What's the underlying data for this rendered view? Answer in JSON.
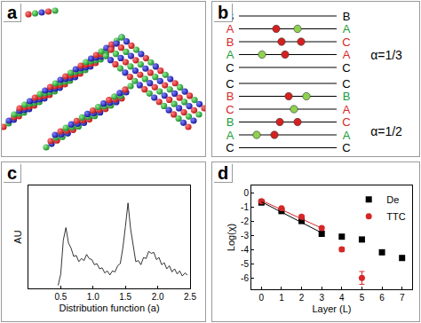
{
  "panel_labels": [
    "a",
    "b",
    "c",
    "d"
  ],
  "diagram": {
    "stacks": [
      {
        "label": "α=1/3",
        "left": [
          {
            "text": "B",
            "color": "#000000"
          },
          {
            "text": "A",
            "color": "#d62728"
          },
          {
            "text": "B",
            "color": "#d62728"
          },
          {
            "text": "A",
            "color": "#1a9c3a"
          },
          {
            "text": "C",
            "color": "#000000"
          }
        ],
        "right": [
          {
            "text": "B",
            "color": "#000000"
          },
          {
            "text": "A",
            "color": "#1a9c3a"
          },
          {
            "text": "C",
            "color": "#d62728"
          },
          {
            "text": "A",
            "color": "#d62728"
          },
          {
            "text": "C",
            "color": "#000000"
          }
        ]
      },
      {
        "label": "α=1/2",
        "left": [
          {
            "text": "C",
            "color": "#000000"
          },
          {
            "text": "B",
            "color": "#d62728"
          },
          {
            "text": "C",
            "color": "#d62728"
          },
          {
            "text": "B",
            "color": "#1a9c3a"
          },
          {
            "text": "A",
            "color": "#1a9c3a"
          },
          {
            "text": "C",
            "color": "#000000"
          }
        ],
        "right": [
          {
            "text": "C",
            "color": "#000000"
          },
          {
            "text": "B",
            "color": "#1a9c3a"
          },
          {
            "text": "A",
            "color": "#d62728"
          },
          {
            "text": "C",
            "color": "#d62728"
          },
          {
            "text": "A",
            "color": "#1a9c3a"
          },
          {
            "text": "C",
            "color": "#000000"
          }
        ]
      }
    ]
  },
  "chart_data": [
    {
      "type": "line",
      "x_label": "Distribution function (a)",
      "y_label": "AU",
      "x": [
        0.46,
        0.5,
        0.54,
        0.58,
        0.62,
        0.66,
        0.7,
        0.74,
        0.78,
        0.82,
        0.86,
        0.9,
        0.94,
        0.98,
        1.02,
        1.06,
        1.1,
        1.14,
        1.18,
        1.22,
        1.26,
        1.3,
        1.34,
        1.38,
        1.42,
        1.46,
        1.5,
        1.54,
        1.58,
        1.62,
        1.66,
        1.7,
        1.74,
        1.78,
        1.82,
        1.86,
        1.9,
        1.94,
        1.98,
        2.02,
        2.06,
        2.1,
        2.14,
        2.18,
        2.22,
        2.26,
        2.3,
        2.34,
        2.38,
        2.42,
        2.46
      ],
      "values": [
        3,
        14,
        47,
        59,
        44,
        39,
        31,
        32,
        26,
        29,
        27,
        33,
        29,
        28,
        23,
        24,
        19,
        20,
        15,
        17,
        13,
        17,
        16,
        22,
        24,
        39,
        60,
        83,
        58,
        40,
        26,
        27,
        23,
        30,
        29,
        36,
        34,
        35,
        28,
        30,
        23,
        25,
        19,
        22,
        16,
        19,
        14,
        17,
        12,
        15,
        13
      ],
      "color": "#000000",
      "xlim": [
        0,
        2.5
      ],
      "xticks": [
        {
          "value": 0.5,
          "label": "0.5"
        },
        {
          "value": 1,
          "label": "1.0"
        },
        {
          "value": 1.5,
          "label": "1.5"
        },
        {
          "value": 2,
          "label": "2.0"
        },
        {
          "value": 2.5,
          "label": "2.5"
        }
      ],
      "ylim": [
        0,
        100
      ],
      "tick_labels": "x",
      "grid": false
    },
    {
      "type": "scatter",
      "x_label": "Layer (L)",
      "y_label": "Log(χ)",
      "x": [
        0,
        1,
        2,
        3,
        4,
        5,
        6,
        7
      ],
      "series": [
        {
          "name": "De",
          "color": "#000000",
          "marker": "square",
          "values": [
            -0.7,
            -1.3,
            -2.0,
            -2.9,
            -3.1,
            -3.3,
            -4.2,
            -4.6
          ],
          "errors": [
            0.05,
            0.05,
            0.1,
            0.1,
            0.1,
            0.15,
            0.15,
            0.15
          ]
        },
        {
          "name": "TTC",
          "color": "#d62728",
          "marker": "circle",
          "values": [
            -0.6,
            -1.1,
            -1.7,
            -2.5,
            -4.0,
            -6.0,
            null,
            null
          ],
          "errors": [
            0.05,
            0.05,
            0.1,
            0.1,
            0.15,
            0.45,
            null,
            null
          ]
        },
        {
          "type": "line",
          "color": "#000000",
          "values": [
            -0.65,
            -1.38,
            -2.1,
            -2.83,
            null,
            null,
            null,
            null
          ]
        },
        {
          "type": "line",
          "color": "#d62728",
          "values": [
            -0.55,
            -1.2,
            -1.85,
            -2.5,
            null,
            null,
            null,
            null
          ]
        }
      ],
      "xlim": [
        -0.5,
        7.5
      ],
      "xticks": [
        0,
        1,
        2,
        3,
        4,
        5,
        6,
        7
      ],
      "ylim": [
        -6.8,
        0.5
      ],
      "yticks": [
        -6,
        -5,
        -4,
        -3,
        -2,
        -1,
        0
      ],
      "legend": "upper right",
      "grid": false
    }
  ]
}
